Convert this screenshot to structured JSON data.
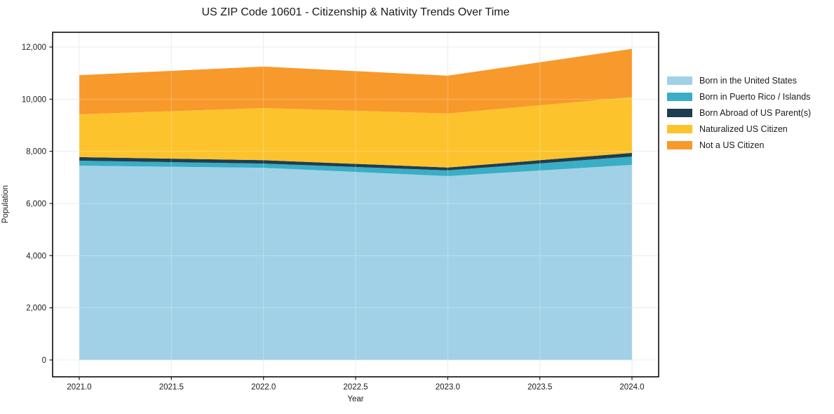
{
  "figure": {
    "background": "#ffffff"
  },
  "chart_data": {
    "type": "area",
    "stacked": true,
    "title": "US ZIP Code 10601 - Citizenship & Nativity Trends Over Time",
    "xlabel": "Year",
    "ylabel": "Population",
    "x": [
      2021,
      2022,
      2023,
      2024
    ],
    "series": [
      {
        "name": "Born in the United States",
        "color": "#a1d1e6",
        "values": [
          7450,
          7370,
          7050,
          7480
        ]
      },
      {
        "name": "Born in Puerto Rico / Islands",
        "color": "#3aaec5",
        "values": [
          190,
          160,
          220,
          320
        ]
      },
      {
        "name": "Born Abroad of US Parent(s)",
        "color": "#1f3d52",
        "values": [
          140,
          130,
          110,
          140
        ]
      },
      {
        "name": "Naturalized US Citizen",
        "color": "#fcc32d",
        "values": [
          1640,
          2000,
          2070,
          2140
        ]
      },
      {
        "name": "Not a US Citizen",
        "color": "#f8992b",
        "values": [
          1500,
          1590,
          1450,
          1850
        ]
      }
    ],
    "xticks": [
      2021.0,
      2021.5,
      2022.0,
      2022.5,
      2023.0,
      2023.5,
      2024.0
    ],
    "xtick_labels": [
      "2021.0",
      "2021.5",
      "2022.0",
      "2022.5",
      "2023.0",
      "2023.5",
      "2024.0"
    ],
    "yticks": [
      0,
      2000,
      4000,
      6000,
      8000,
      10000,
      12000
    ],
    "ytick_labels": [
      "0",
      "2,000",
      "4,000",
      "6,000",
      "8,000",
      "10,000",
      "12,000"
    ],
    "xlim": [
      2020.855,
      2024.145
    ],
    "ylim": [
      -650,
      12570
    ],
    "grid": true,
    "grid_color": "#e6e6e6",
    "frame_color": "#1a1a1a",
    "legend_position": "right"
  }
}
